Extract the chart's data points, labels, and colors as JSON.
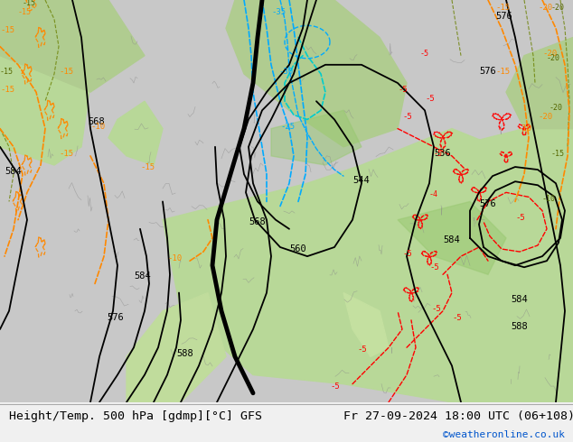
{
  "title_left": "Height/Temp. 500 hPa [gdmp][°C] GFS",
  "title_right": "Fr 27-09-2024 18:00 UTC (06+108)",
  "watermark": "©weatheronline.co.uk",
  "bg_color": "#e8e8e8",
  "land_color_light": "#c8e6b0",
  "land_color_medium": "#a0cc80",
  "sea_color": "#d8d8d8",
  "fig_width": 6.34,
  "fig_height": 4.9,
  "dpi": 100
}
